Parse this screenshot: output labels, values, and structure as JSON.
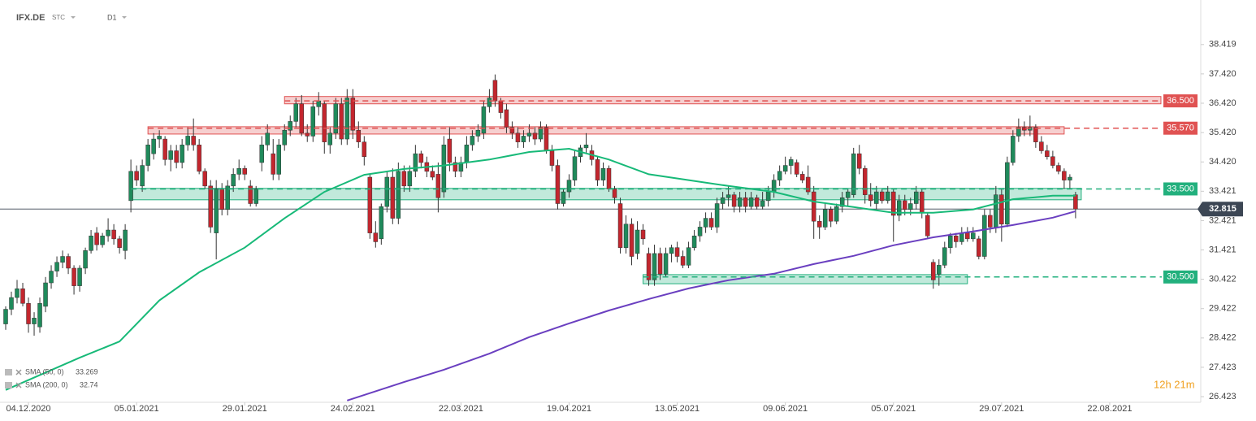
{
  "chart_data": {
    "type": "candlestick",
    "title": "IFX.DE",
    "instrument_type": "STC",
    "timeframe": "D1",
    "timer": "12h 21m",
    "up_color": "#1f8a5b",
    "down_color": "#c3262e",
    "xlim": [
      -1,
      210
    ],
    "ylim": [
      26.23,
      39.66
    ],
    "yticks": [
      38.419,
      {
        "value": 37.42,
        "label": "37.420"
      },
      {
        "value": 36.42,
        "label": "36.420"
      },
      {
        "value": 35.42,
        "label": "35.420"
      },
      {
        "value": 34.42,
        "label": "34.420"
      },
      33.421,
      32.421,
      31.421,
      30.422,
      29.422,
      28.422,
      27.423,
      26.423
    ],
    "xticks": [
      {
        "value": 4,
        "label": "04.12.2020"
      },
      {
        "value": 23,
        "label": "05.01.2021"
      },
      {
        "value": 42,
        "label": "29.01.2021"
      },
      {
        "value": 61,
        "label": "24.02.2021"
      },
      {
        "value": 80,
        "label": "22.03.2021"
      },
      {
        "value": 99,
        "label": "19.04.2021"
      },
      {
        "value": 118,
        "label": "13.05.2021"
      },
      {
        "value": 137,
        "label": "09.06.2021"
      },
      {
        "value": 156,
        "label": "05.07.2021"
      },
      {
        "value": 175,
        "label": "29.07.2021"
      },
      {
        "value": 194,
        "label": "22.08.2021"
      }
    ],
    "candles": [
      [
        28.9,
        29.5,
        28.7,
        29.4
      ],
      [
        29.4,
        30.0,
        29.2,
        29.8
      ],
      [
        29.8,
        30.4,
        29.6,
        30.1
      ],
      [
        30.1,
        30.3,
        29.5,
        29.6
      ],
      [
        29.6,
        29.8,
        28.6,
        28.9
      ],
      [
        28.9,
        29.3,
        28.5,
        29.1
      ],
      [
        28.8,
        29.8,
        28.6,
        29.6
      ],
      [
        29.5,
        30.5,
        29.3,
        30.3
      ],
      [
        30.3,
        30.9,
        30.1,
        30.7
      ],
      [
        30.7,
        31.2,
        30.5,
        31.0
      ],
      [
        31.0,
        31.4,
        30.8,
        31.2
      ],
      [
        31.2,
        31.3,
        30.6,
        30.8
      ],
      [
        30.8,
        30.9,
        29.9,
        30.2
      ],
      [
        30.2,
        30.9,
        30.0,
        30.8
      ],
      [
        30.8,
        31.5,
        30.6,
        31.4
      ],
      [
        31.4,
        32.1,
        31.3,
        31.9
      ],
      [
        32.0,
        32.2,
        31.4,
        31.6
      ],
      [
        31.6,
        32.0,
        31.5,
        31.9
      ],
      [
        31.9,
        32.5,
        31.7,
        32.1
      ],
      [
        32.1,
        32.3,
        31.6,
        31.8
      ],
      [
        31.8,
        31.9,
        31.3,
        31.5
      ],
      [
        31.4,
        32.3,
        31.1,
        32.1
      ],
      [
        33.1,
        34.5,
        32.7,
        34.1
      ],
      [
        34.1,
        34.3,
        33.6,
        33.8
      ],
      [
        33.6,
        34.5,
        33.4,
        34.3
      ],
      [
        34.3,
        35.2,
        34.1,
        35.0
      ],
      [
        34.7,
        35.4,
        34.5,
        35.2
      ],
      [
        35.2,
        35.5,
        34.9,
        35.3
      ],
      [
        35.2,
        35.3,
        34.3,
        34.5
      ],
      [
        34.5,
        35.0,
        34.1,
        34.8
      ],
      [
        34.8,
        35.0,
        34.2,
        34.4
      ],
      [
        34.4,
        35.2,
        34.2,
        35.0
      ],
      [
        35.0,
        35.6,
        34.8,
        35.3
      ],
      [
        35.3,
        35.9,
        34.8,
        35.0
      ],
      [
        35.0,
        35.2,
        34.0,
        34.1
      ],
      [
        34.1,
        34.2,
        33.5,
        33.6
      ],
      [
        33.6,
        33.8,
        32.0,
        32.2
      ],
      [
        32.0,
        33.8,
        31.1,
        33.5
      ],
      [
        33.5,
        33.7,
        32.6,
        32.8
      ],
      [
        32.8,
        33.8,
        32.6,
        33.6
      ],
      [
        33.6,
        34.2,
        33.4,
        34.0
      ],
      [
        34.0,
        34.5,
        33.8,
        34.2
      ],
      [
        34.2,
        34.3,
        33.8,
        34.0
      ],
      [
        33.6,
        33.8,
        32.9,
        33.0
      ],
      [
        33.0,
        33.6,
        32.9,
        33.5
      ],
      [
        34.4,
        35.3,
        34.1,
        35.0
      ],
      [
        35.0,
        35.7,
        34.8,
        35.4
      ],
      [
        34.7,
        35.2,
        33.8,
        34.0
      ],
      [
        34.0,
        35.2,
        33.8,
        35.0
      ],
      [
        35.0,
        35.7,
        34.8,
        35.5
      ],
      [
        35.5,
        36.0,
        35.3,
        35.8
      ],
      [
        35.8,
        36.6,
        35.6,
        36.4
      ],
      [
        36.4,
        36.7,
        35.3,
        35.4
      ],
      [
        35.4,
        35.7,
        35.1,
        35.3
      ],
      [
        35.3,
        36.5,
        35.1,
        36.3
      ],
      [
        36.3,
        36.8,
        36.0,
        36.5
      ],
      [
        36.4,
        36.5,
        34.7,
        35.1
      ],
      [
        35.0,
        35.6,
        34.7,
        35.4
      ],
      [
        35.4,
        36.6,
        35.2,
        36.4
      ],
      [
        36.4,
        36.6,
        35.0,
        35.2
      ],
      [
        35.2,
        36.9,
        35.0,
        36.6
      ],
      [
        36.6,
        36.9,
        35.2,
        35.5
      ],
      [
        35.5,
        35.8,
        34.9,
        35.1
      ],
      [
        35.1,
        35.3,
        34.3,
        34.6
      ],
      [
        33.9,
        34.0,
        31.8,
        32.0
      ],
      [
        32.0,
        32.4,
        31.5,
        31.7
      ],
      [
        31.8,
        33.0,
        31.6,
        32.9
      ],
      [
        32.9,
        34.1,
        32.7,
        33.9
      ],
      [
        33.9,
        34.2,
        32.3,
        32.5
      ],
      [
        32.5,
        34.4,
        32.3,
        34.1
      ],
      [
        34.1,
        34.3,
        33.4,
        33.6
      ],
      [
        33.6,
        34.3,
        33.4,
        34.1
      ],
      [
        34.1,
        35.0,
        33.9,
        34.7
      ],
      [
        34.7,
        34.8,
        34.2,
        34.4
      ],
      [
        34.4,
        34.6,
        33.9,
        34.1
      ],
      [
        34.1,
        34.3,
        33.8,
        33.9
      ],
      [
        34.0,
        34.4,
        32.7,
        33.2
      ],
      [
        33.4,
        35.3,
        33.2,
        35.0
      ],
      [
        35.2,
        35.6,
        34.1,
        34.4
      ],
      [
        34.4,
        34.6,
        33.9,
        34.1
      ],
      [
        34.1,
        34.6,
        33.9,
        34.4
      ],
      [
        34.4,
        35.3,
        34.2,
        35.0
      ],
      [
        35.0,
        35.5,
        34.8,
        35.3
      ],
      [
        35.3,
        35.7,
        35.1,
        35.5
      ],
      [
        35.4,
        36.5,
        35.2,
        36.3
      ],
      [
        36.3,
        36.9,
        36.1,
        36.6
      ],
      [
        37.2,
        37.4,
        36.3,
        36.5
      ],
      [
        36.5,
        36.6,
        35.9,
        36.1
      ],
      [
        36.2,
        36.4,
        35.4,
        35.6
      ],
      [
        35.6,
        35.8,
        35.2,
        35.4
      ],
      [
        35.4,
        35.6,
        34.9,
        35.1
      ],
      [
        35.1,
        35.5,
        34.9,
        35.3
      ],
      [
        35.3,
        35.7,
        35.1,
        35.4
      ],
      [
        35.4,
        35.6,
        35.0,
        35.2
      ],
      [
        35.2,
        35.8,
        35.1,
        35.6
      ],
      [
        35.6,
        35.7,
        34.7,
        34.8
      ],
      [
        34.8,
        35.0,
        34.1,
        34.3
      ],
      [
        34.3,
        34.5,
        32.8,
        33.0
      ],
      [
        33.0,
        33.5,
        32.9,
        33.4
      ],
      [
        33.4,
        34.0,
        33.2,
        33.8
      ],
      [
        33.8,
        34.8,
        33.6,
        34.6
      ],
      [
        34.6,
        35.0,
        34.4,
        34.9
      ],
      [
        34.9,
        35.4,
        34.7,
        35.0
      ],
      [
        34.8,
        35.0,
        34.3,
        34.5
      ],
      [
        34.5,
        34.6,
        33.6,
        33.8
      ],
      [
        33.8,
        34.4,
        33.6,
        34.2
      ],
      [
        34.2,
        34.3,
        33.4,
        33.5
      ],
      [
        33.5,
        33.6,
        33.0,
        33.2
      ],
      [
        33.0,
        33.2,
        31.3,
        31.5
      ],
      [
        31.5,
        32.6,
        31.3,
        32.3
      ],
      [
        32.3,
        32.5,
        30.9,
        31.2
      ],
      [
        31.3,
        32.4,
        31.1,
        32.1
      ],
      [
        32.1,
        32.3,
        31.6,
        31.8
      ],
      [
        31.3,
        31.5,
        30.2,
        30.4
      ],
      [
        30.4,
        31.6,
        30.2,
        31.3
      ],
      [
        31.3,
        31.5,
        30.4,
        30.6
      ],
      [
        30.6,
        31.5,
        30.5,
        31.3
      ],
      [
        31.3,
        31.6,
        31.0,
        31.5
      ],
      [
        31.5,
        31.7,
        31.0,
        31.2
      ],
      [
        31.2,
        31.4,
        30.8,
        30.9
      ],
      [
        30.9,
        31.7,
        30.8,
        31.5
      ],
      [
        31.5,
        32.1,
        31.4,
        31.9
      ],
      [
        31.9,
        32.4,
        31.7,
        32.2
      ],
      [
        32.2,
        32.7,
        32.0,
        32.5
      ],
      [
        32.5,
        32.7,
        32.1,
        32.2
      ],
      [
        32.2,
        33.2,
        32.0,
        33.0
      ],
      [
        33.0,
        33.4,
        32.8,
        33.2
      ],
      [
        33.2,
        33.6,
        32.9,
        33.3
      ],
      [
        33.3,
        33.4,
        32.7,
        32.9
      ],
      [
        32.9,
        33.4,
        32.7,
        33.2
      ],
      [
        33.2,
        33.4,
        32.7,
        32.9
      ],
      [
        32.9,
        33.4,
        32.8,
        33.2
      ],
      [
        33.2,
        33.3,
        32.8,
        32.9
      ],
      [
        32.9,
        33.4,
        32.8,
        33.1
      ],
      [
        33.1,
        33.6,
        32.9,
        33.4
      ],
      [
        33.4,
        34.0,
        33.2,
        33.8
      ],
      [
        33.8,
        34.3,
        33.6,
        34.1
      ],
      [
        34.1,
        34.6,
        34.0,
        34.3
      ],
      [
        34.3,
        34.6,
        34.0,
        34.5
      ],
      [
        34.4,
        34.5,
        33.9,
        34.0
      ],
      [
        34.0,
        34.1,
        33.7,
        33.8
      ],
      [
        33.9,
        34.3,
        33.3,
        33.4
      ],
      [
        33.4,
        33.6,
        31.8,
        32.4
      ],
      [
        32.4,
        32.6,
        31.8,
        32.2
      ],
      [
        32.2,
        33.0,
        32.1,
        32.8
      ],
      [
        32.8,
        32.9,
        32.2,
        32.4
      ],
      [
        32.4,
        33.0,
        32.3,
        32.9
      ],
      [
        32.9,
        33.4,
        32.7,
        33.2
      ],
      [
        33.2,
        33.5,
        32.9,
        33.4
      ],
      [
        33.3,
        34.9,
        33.2,
        34.7
      ],
      [
        34.7,
        35.0,
        34.0,
        34.2
      ],
      [
        34.2,
        34.3,
        33.0,
        33.3
      ],
      [
        33.3,
        33.7,
        32.9,
        33.1
      ],
      [
        33.0,
        33.6,
        32.8,
        33.4
      ],
      [
        33.4,
        33.5,
        33.0,
        33.1
      ],
      [
        33.1,
        33.6,
        33.0,
        33.4
      ],
      [
        33.4,
        33.5,
        31.7,
        32.6
      ],
      [
        32.6,
        33.3,
        32.4,
        33.1
      ],
      [
        33.1,
        33.3,
        32.6,
        32.8
      ],
      [
        32.8,
        33.2,
        32.6,
        33.0
      ],
      [
        33.0,
        33.6,
        32.8,
        33.4
      ],
      [
        33.4,
        33.5,
        32.5,
        32.7
      ],
      [
        32.6,
        32.7,
        31.8,
        31.9
      ],
      [
        31.0,
        31.1,
        30.1,
        30.4
      ],
      [
        30.6,
        31.1,
        30.2,
        30.9
      ],
      [
        30.9,
        31.7,
        30.8,
        31.5
      ],
      [
        31.5,
        32.0,
        31.3,
        31.9
      ],
      [
        31.9,
        32.0,
        31.5,
        31.7
      ],
      [
        31.7,
        32.2,
        31.6,
        32.0
      ],
      [
        32.0,
        32.2,
        31.7,
        31.8
      ],
      [
        31.8,
        32.2,
        31.7,
        32.0
      ],
      [
        31.8,
        31.9,
        31.1,
        31.2
      ],
      [
        31.2,
        32.8,
        31.1,
        32.6
      ],
      [
        32.6,
        32.8,
        32.0,
        32.2
      ],
      [
        32.2,
        33.6,
        32.0,
        33.3
      ],
      [
        33.3,
        33.5,
        31.7,
        32.3
      ],
      [
        32.3,
        34.6,
        32.2,
        34.4
      ],
      [
        34.4,
        35.5,
        34.3,
        35.3
      ],
      [
        35.3,
        35.9,
        35.1,
        35.6
      ],
      [
        35.6,
        35.8,
        35.3,
        35.5
      ],
      [
        35.5,
        36.0,
        35.3,
        35.6
      ],
      [
        35.6,
        35.7,
        34.9,
        35.1
      ],
      [
        35.1,
        35.3,
        34.7,
        34.8
      ],
      [
        34.8,
        35.0,
        34.5,
        34.6
      ],
      [
        34.6,
        34.8,
        34.2,
        34.3
      ],
      [
        34.3,
        34.4,
        34.0,
        34.1
      ],
      [
        34.1,
        34.2,
        33.5,
        33.8
      ],
      [
        33.8,
        34.0,
        33.5,
        33.9
      ],
      [
        33.3,
        33.4,
        32.5,
        32.815
      ]
    ],
    "series": [
      {
        "name": "SMA (50, 0)",
        "last_value": 33.269,
        "color": "#17b978",
        "x": [
          0,
          13,
          20,
          27,
          34,
          42,
          49,
          56,
          63,
          70,
          77,
          85,
          92,
          99,
          106,
          113,
          120,
          127,
          135,
          142,
          149,
          156,
          163,
          170,
          177,
          184,
          188
        ],
        "values": [
          26.65,
          27.75,
          28.3,
          29.7,
          30.66,
          31.5,
          32.5,
          33.4,
          33.98,
          34.18,
          34.3,
          34.5,
          34.76,
          34.87,
          34.5,
          34.0,
          33.8,
          33.6,
          33.4,
          33.07,
          32.88,
          32.69,
          32.69,
          32.8,
          33.15,
          33.27,
          33.269
        ]
      },
      {
        "name": "SMA (200, 0)",
        "last_value": 32.74,
        "color": "#6a3fc0",
        "x": [
          60,
          70,
          77,
          85,
          92,
          99,
          106,
          113,
          120,
          127,
          135,
          142,
          149,
          156,
          163,
          170,
          177,
          184,
          188
        ],
        "values": [
          26.29,
          26.92,
          27.34,
          27.89,
          28.45,
          28.92,
          29.36,
          29.75,
          30.11,
          30.39,
          30.61,
          30.94,
          31.22,
          31.58,
          31.85,
          32.05,
          32.27,
          32.52,
          32.74
        ]
      }
    ],
    "levels": [
      {
        "value": 36.5,
        "label": "36.500",
        "color": "#e05252",
        "zone": [
          36.4,
          36.65
        ],
        "start": 49,
        "end": 203
      },
      {
        "value": 35.57,
        "label": "35.570",
        "color": "#e05252",
        "zone": [
          35.37,
          35.62
        ],
        "start": 25,
        "end": 186
      },
      {
        "value": 33.5,
        "label": "33.500",
        "color": "#22b07d",
        "zone": [
          33.13,
          33.52
        ],
        "start": 22,
        "end": 189
      },
      {
        "value": 30.5,
        "label": "30.500",
        "color": "#22b07d",
        "zone": [
          30.27,
          30.58
        ],
        "start": 112,
        "end": 169
      }
    ],
    "current_price": 32.815
  }
}
